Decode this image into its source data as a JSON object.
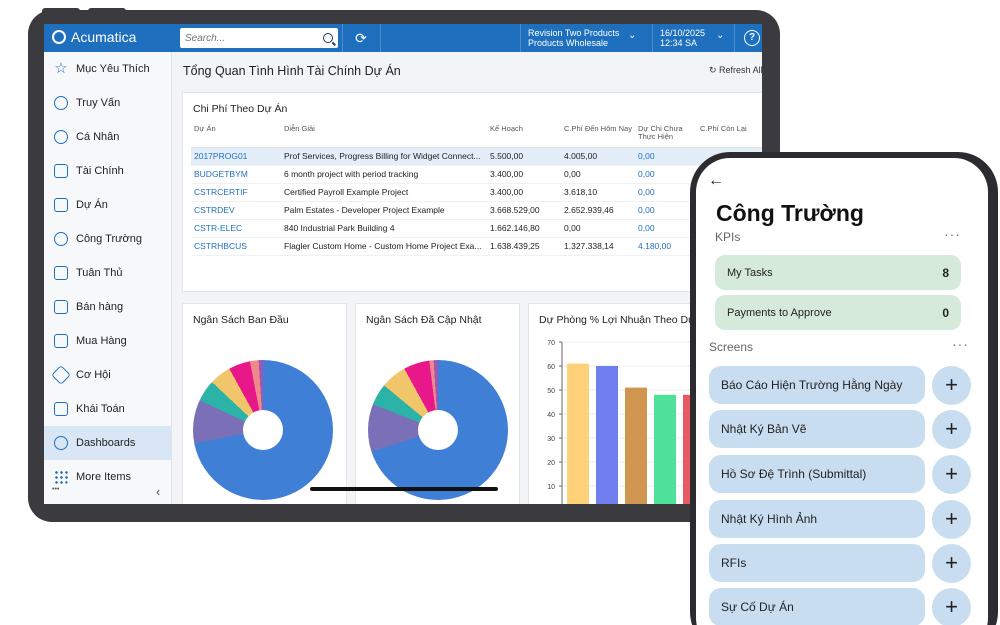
{
  "tablet": {
    "logo": "Acumatica",
    "search_placeholder": "Search...",
    "company_line1": "Revision Two Products",
    "company_line2": "Products Wholesale",
    "date_line1": "16/10/2025",
    "date_line2": "12:34 SA",
    "help": "?",
    "sidebar": [
      {
        "label": "Mục Yêu Thích",
        "icon": "star-icon"
      },
      {
        "label": "Truy Vấn",
        "icon": "chart-icon"
      },
      {
        "label": "Cá Nhân",
        "icon": "timer-icon"
      },
      {
        "label": "Tài Chính",
        "icon": "calculator-icon"
      },
      {
        "label": "Dự Án",
        "icon": "signpost-icon"
      },
      {
        "label": "Công Trường",
        "icon": "worker-icon"
      },
      {
        "label": "Tuân Thủ",
        "icon": "document-icon"
      },
      {
        "label": "Bán hàng",
        "icon": "edit-icon"
      },
      {
        "label": "Mua Hàng",
        "icon": "cart-icon"
      },
      {
        "label": "Cơ Hội",
        "icon": "tag-icon"
      },
      {
        "label": "Khái Toán",
        "icon": "pen-icon"
      },
      {
        "label": "Dashboards",
        "icon": "pie-chart-icon"
      },
      {
        "label": "More Items",
        "icon": "grid-icon"
      }
    ],
    "sidebar_footer_dots": "•••",
    "sidebar_collapse": "‹",
    "page_title": "Tổng Quan Tình Hình Tài Chính Dự Án",
    "refresh_label": "Refresh All",
    "table": {
      "title": "Chi Phí Theo Dự Án",
      "headers": [
        "Dự Án",
        "Diễn Giải",
        "Kế Hoạch",
        "C.Phí Đến Hôm Nay",
        "Dự Chi Chưa Thực Hiện",
        "C.Phí Còn Lại"
      ],
      "rows": [
        [
          "2017PROG01",
          "Prof Services, Progress Billing for Widget Connect...",
          "5.500,00",
          "4.005,00",
          "0,00",
          ""
        ],
        [
          "BUDGETBYM",
          "6 month project with period tracking",
          "3.400,00",
          "0,00",
          "0,00",
          ""
        ],
        [
          "CSTRCERTIF",
          "Certified Payroll Example Project",
          "3.400,00",
          "3.618,10",
          "0,00",
          ""
        ],
        [
          "CSTRDEV",
          "Palm Estates - Developer Project Example",
          "3.668.529,00",
          "2.652.939,46",
          "0,00",
          ""
        ],
        [
          "CSTR-ELEC",
          "840 Industrial Park Building 4",
          "1.662.146,80",
          "0,00",
          "0,00",
          ""
        ],
        [
          "CSTRHBCUS",
          "Flagler Custom Home - Custom Home Project Exa...",
          "1.638.439,25",
          "1.327.338,14",
          "4.180,00",
          ""
        ]
      ]
    },
    "card_original_budget": "Ngân Sách Ban Đầu",
    "card_updated_budget": "Ngân Sách Đã Cập Nhật",
    "card_profit": "Dự Phòng % Lợi Nhuận Theo Dự Án"
  },
  "chart_data": [
    {
      "type": "pie",
      "title": "Ngân Sách Ban Đầu",
      "values": [
        72,
        10,
        5,
        5,
        5,
        2,
        1
      ],
      "colors": [
        "#3f7fd6",
        "#7b6fb8",
        "#2bb3a8",
        "#f1c56a",
        "#e8188a",
        "#f08a8a",
        "#9b59b6"
      ]
    },
    {
      "type": "pie",
      "title": "Ngân Sách Đã Cập Nhật",
      "values": [
        70,
        11,
        5,
        6,
        6,
        1,
        1
      ],
      "colors": [
        "#3f7fd6",
        "#7b6fb8",
        "#2bb3a8",
        "#f1c56a",
        "#e8188a",
        "#f08a8a",
        "#9b59b6"
      ]
    },
    {
      "type": "bar",
      "title": "Dự Phòng % Lợi Nhuận Theo Dự Án",
      "values": [
        61,
        60,
        51,
        48,
        48
      ],
      "colors": [
        "#ffd27a",
        "#6f7ff0",
        "#cf9650",
        "#4fe09a",
        "#e85a62"
      ],
      "ylim": [
        0,
        70
      ],
      "yticks": [
        "70",
        "60",
        "50",
        "40",
        "30",
        "20",
        "10"
      ]
    }
  ],
  "phone": {
    "back": "←",
    "title": "Công Trường",
    "kpis_label": "KPIs",
    "kpis": [
      {
        "label": "My Tasks",
        "value": "8"
      },
      {
        "label": "Payments to Approve",
        "value": "0"
      }
    ],
    "screens_label": "Screens",
    "more": "···",
    "screens": [
      "Báo Cáo Hiện Trường Hằng Ngày",
      "Nhật Ký Bản Vẽ",
      "Hồ Sơ Đệ Trình (Submittal)",
      "Nhật Ký Hình Ảnh",
      "RFIs",
      "Sự Cố Dự Án"
    ],
    "plus": "+"
  }
}
